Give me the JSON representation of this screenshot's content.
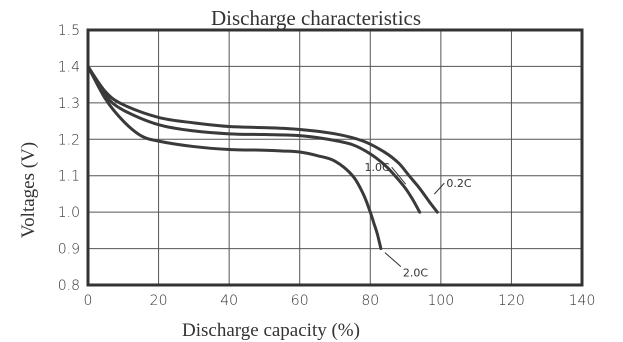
{
  "chart_data": {
    "type": "line",
    "title": "Discharge characteristics",
    "xlabel": "Discharge capacity (%)",
    "ylabel": "Voltages (V)",
    "xlim": [
      0,
      140
    ],
    "ylim": [
      0.8,
      1.5
    ],
    "x_ticks": [
      0,
      20,
      40,
      60,
      80,
      100,
      120,
      140
    ],
    "y_ticks": [
      0.8,
      0.9,
      1.0,
      1.1,
      1.2,
      1.3,
      1.4,
      1.5
    ],
    "x_tick_labels": [
      "0",
      "20",
      "40",
      "60",
      "80",
      "100",
      "120",
      "140"
    ],
    "y_tick_labels": [
      "0.8",
      "0.9",
      "1.0",
      "1.1",
      "1.2",
      "1.3",
      "1.4",
      "1.5"
    ],
    "grid": true,
    "series": [
      {
        "name": "0.2C",
        "x": [
          0,
          5,
          10,
          20,
          30,
          40,
          50,
          60,
          70,
          78,
          84,
          88,
          91,
          94,
          97,
          99
        ],
        "y": [
          1.4,
          1.33,
          1.295,
          1.26,
          1.245,
          1.235,
          1.232,
          1.227,
          1.215,
          1.195,
          1.165,
          1.135,
          1.1,
          1.065,
          1.025,
          1.0
        ]
      },
      {
        "name": "1.0C",
        "x": [
          0,
          5,
          10,
          20,
          30,
          40,
          50,
          60,
          68,
          75,
          80,
          84,
          87,
          90,
          92,
          94
        ],
        "y": [
          1.4,
          1.32,
          1.28,
          1.24,
          1.223,
          1.215,
          1.213,
          1.21,
          1.2,
          1.185,
          1.16,
          1.13,
          1.1,
          1.065,
          1.035,
          1.0
        ]
      },
      {
        "name": "2.0C",
        "x": [
          0,
          5,
          10,
          15,
          20,
          30,
          40,
          50,
          55,
          60,
          65,
          70,
          75,
          78,
          80,
          81,
          82,
          83
        ],
        "y": [
          1.4,
          1.31,
          1.25,
          1.21,
          1.195,
          1.18,
          1.172,
          1.17,
          1.168,
          1.165,
          1.155,
          1.14,
          1.1,
          1.05,
          1.0,
          0.97,
          0.94,
          0.9
        ]
      }
    ]
  }
}
